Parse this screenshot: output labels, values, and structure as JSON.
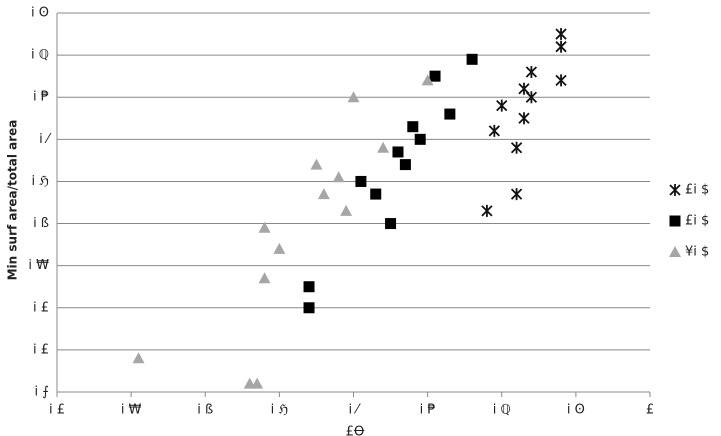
{
  "chart_data": {
    "type": "scatter",
    "y_label": "Min surf area/total area",
    "x_label": "£Ꝋ",
    "xlim": [
      0.2,
      1.0
    ],
    "ylim": [
      0,
      0.9
    ],
    "xticks": [
      {
        "value": 0.2,
        "label": "i £"
      },
      {
        "value": 0.3,
        "label": "i ₩"
      },
      {
        "value": 0.4,
        "label": "i ß"
      },
      {
        "value": 0.5,
        "label": "i ℌ"
      },
      {
        "value": 0.6,
        "label": "i ⁄"
      },
      {
        "value": 0.7,
        "label": "i ₱"
      },
      {
        "value": 0.8,
        "label": "i ℚ"
      },
      {
        "value": 0.9,
        "label": "i Ꙩ"
      },
      {
        "value": 1.0,
        "label": "£"
      }
    ],
    "yticks": [
      {
        "value": 0,
        "label": "i ⨍"
      },
      {
        "value": 0.1,
        "label": "i £"
      },
      {
        "value": 0.2,
        "label": "i £"
      },
      {
        "value": 0.3,
        "label": "i ₩"
      },
      {
        "value": 0.4,
        "label": "i ß"
      },
      {
        "value": 0.5,
        "label": "i ℌ"
      },
      {
        "value": 0.6,
        "label": "i ⁄"
      },
      {
        "value": 0.7,
        "label": "i ₱"
      },
      {
        "value": 0.8,
        "label": "i ℚ"
      },
      {
        "value": 0.9,
        "label": "i Ꙩ"
      }
    ],
    "grid": true,
    "legend": "right",
    "series": [
      {
        "name": "£i $",
        "marker": "asterisk",
        "color": "#111111",
        "x": [
          0.88,
          0.88,
          0.84,
          0.83,
          0.84,
          0.8,
          0.88,
          0.83,
          0.79,
          0.82,
          0.82,
          0.78
        ],
        "values": [
          0.85,
          0.82,
          0.76,
          0.72,
          0.7,
          0.68,
          0.74,
          0.65,
          0.62,
          0.58,
          0.47,
          0.43
        ]
      },
      {
        "name": "£i $",
        "marker": "square",
        "color": "#000000",
        "x": [
          0.76,
          0.71,
          0.73,
          0.68,
          0.69,
          0.66,
          0.67,
          0.61,
          0.63,
          0.65,
          0.54,
          0.54
        ],
        "values": [
          0.79,
          0.75,
          0.66,
          0.63,
          0.6,
          0.57,
          0.54,
          0.5,
          0.47,
          0.4,
          0.25,
          0.2
        ]
      },
      {
        "name": "¥i $",
        "marker": "triangle",
        "color": "#a6a6a6",
        "x": [
          0.7,
          0.6,
          0.64,
          0.55,
          0.58,
          0.56,
          0.59,
          0.48,
          0.5,
          0.48,
          0.31,
          0.46,
          0.47
        ],
        "values": [
          0.74,
          0.7,
          0.58,
          0.54,
          0.51,
          0.47,
          0.43,
          0.39,
          0.34,
          0.27,
          0.08,
          0.02,
          0.02
        ]
      }
    ]
  }
}
